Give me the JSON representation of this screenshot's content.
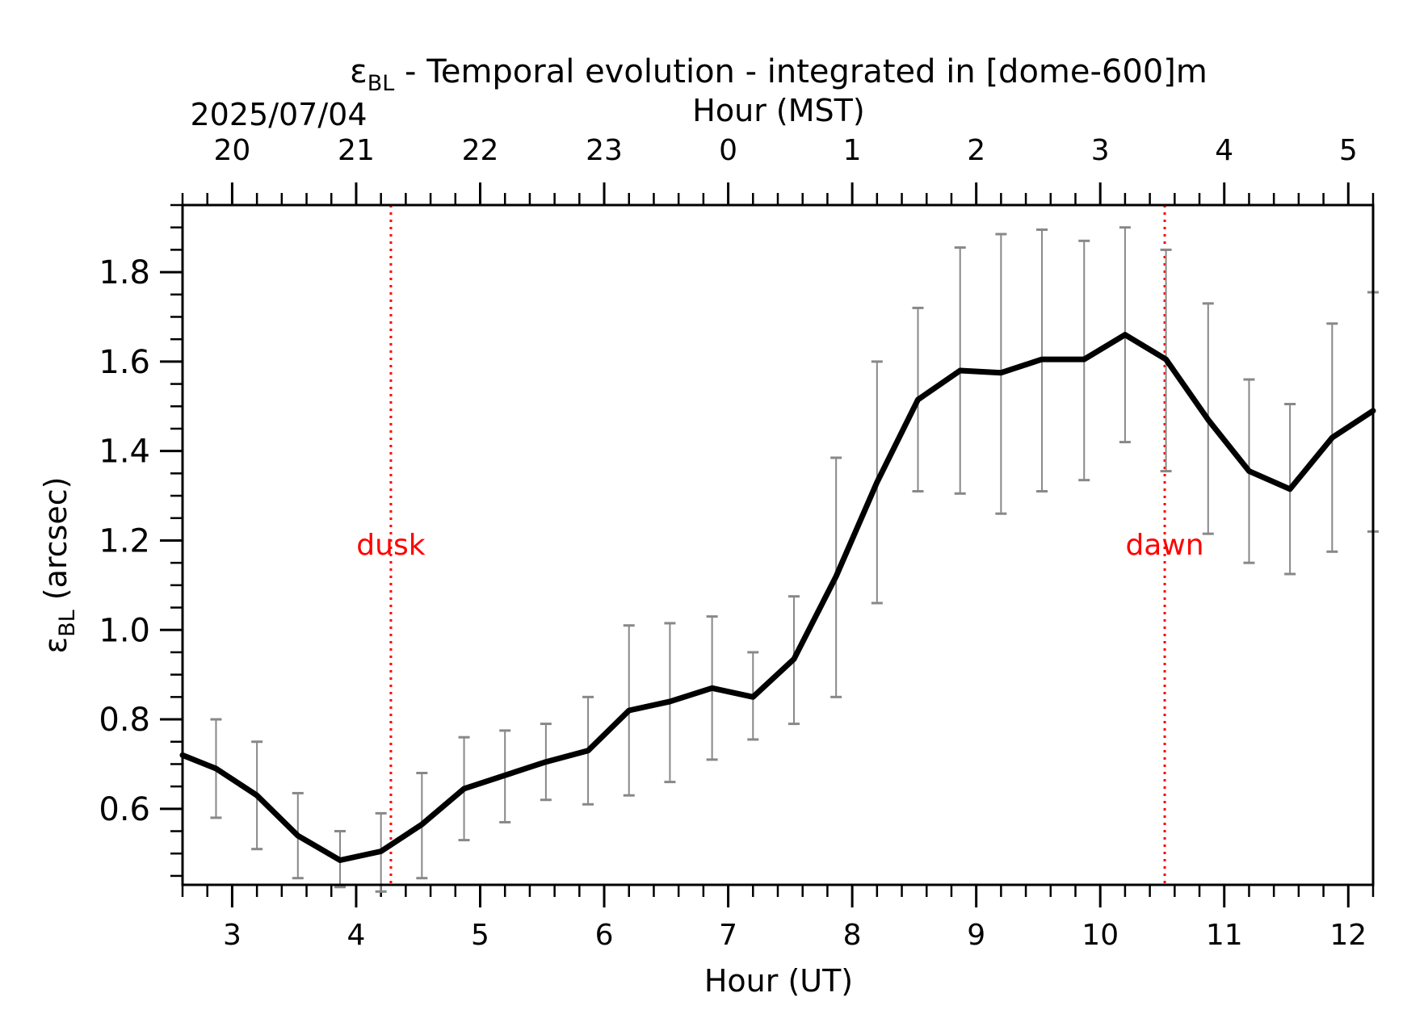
{
  "chart_data": {
    "type": "line",
    "title": {
      "symbol": "ε",
      "subscript": "BL",
      "rest": " - Temporal evolution - integrated in [dome-600]m"
    },
    "date_label": "2025/07/04",
    "top_axis_label": "Hour (MST)",
    "xlabel": "Hour (UT)",
    "ylabel": {
      "symbol": "ε",
      "subscript": "BL",
      "rest": " (arcsec)"
    },
    "xlim": [
      2.6,
      12.2
    ],
    "ylim": [
      0.43,
      1.95
    ],
    "x_ticks": [
      3,
      4,
      5,
      6,
      7,
      8,
      9,
      10,
      11,
      12
    ],
    "x_tick_labels": [
      "3",
      "4",
      "5",
      "6",
      "7",
      "8",
      "9",
      "10",
      "11",
      "12"
    ],
    "y_ticks": [
      0.6,
      0.8,
      1.0,
      1.2,
      1.4,
      1.6,
      1.8
    ],
    "y_tick_labels": [
      "0.6",
      "0.8",
      "1.0",
      "1.2",
      "1.4",
      "1.6",
      "1.8"
    ],
    "top_ticks_ut": [
      3,
      4,
      5,
      6,
      7,
      8,
      9,
      10,
      11,
      12
    ],
    "top_tick_labels": [
      "20",
      "21",
      "22",
      "23",
      "0",
      "1",
      "2",
      "3",
      "4",
      "5"
    ],
    "grid": false,
    "series": [
      {
        "x": [
          2.6,
          2.87,
          3.2,
          3.53,
          3.87,
          4.2,
          4.53,
          4.87,
          5.2,
          5.53,
          5.87,
          6.2,
          6.53,
          6.87,
          7.2,
          7.53,
          7.87,
          8.2,
          8.53,
          8.87,
          9.2,
          9.53,
          9.87,
          10.2,
          10.53,
          10.87,
          11.2,
          11.53,
          11.87,
          12.2
        ],
        "y": [
          0.72,
          0.69,
          0.63,
          0.54,
          0.485,
          0.505,
          0.565,
          0.645,
          0.675,
          0.705,
          0.73,
          0.82,
          0.84,
          0.87,
          0.85,
          0.935,
          1.12,
          1.33,
          1.515,
          1.58,
          1.575,
          1.605,
          1.605,
          1.66,
          1.605,
          1.47,
          1.355,
          1.315,
          1.43,
          1.49
        ],
        "err_low": [
          null,
          0.58,
          0.51,
          0.445,
          0.425,
          0.415,
          0.445,
          0.53,
          0.57,
          0.62,
          0.61,
          0.63,
          0.66,
          0.71,
          0.755,
          0.79,
          0.85,
          1.06,
          1.31,
          1.305,
          1.26,
          1.31,
          1.335,
          1.42,
          1.355,
          1.215,
          1.15,
          1.125,
          1.175,
          1.22
        ],
        "err_high": [
          null,
          0.8,
          0.75,
          0.635,
          0.55,
          0.59,
          0.68,
          0.76,
          0.775,
          0.79,
          0.85,
          1.01,
          1.015,
          1.03,
          0.95,
          1.075,
          1.385,
          1.6,
          1.72,
          1.855,
          1.885,
          1.895,
          1.87,
          1.9,
          1.85,
          1.73,
          1.56,
          1.505,
          1.685,
          1.755
        ],
        "color": "#000000",
        "error_color": "#888888"
      }
    ],
    "events": [
      {
        "label": "dusk",
        "x": 4.28,
        "color": "#ff0000"
      },
      {
        "label": "dawn",
        "x": 10.52,
        "color": "#ff0000"
      }
    ]
  }
}
